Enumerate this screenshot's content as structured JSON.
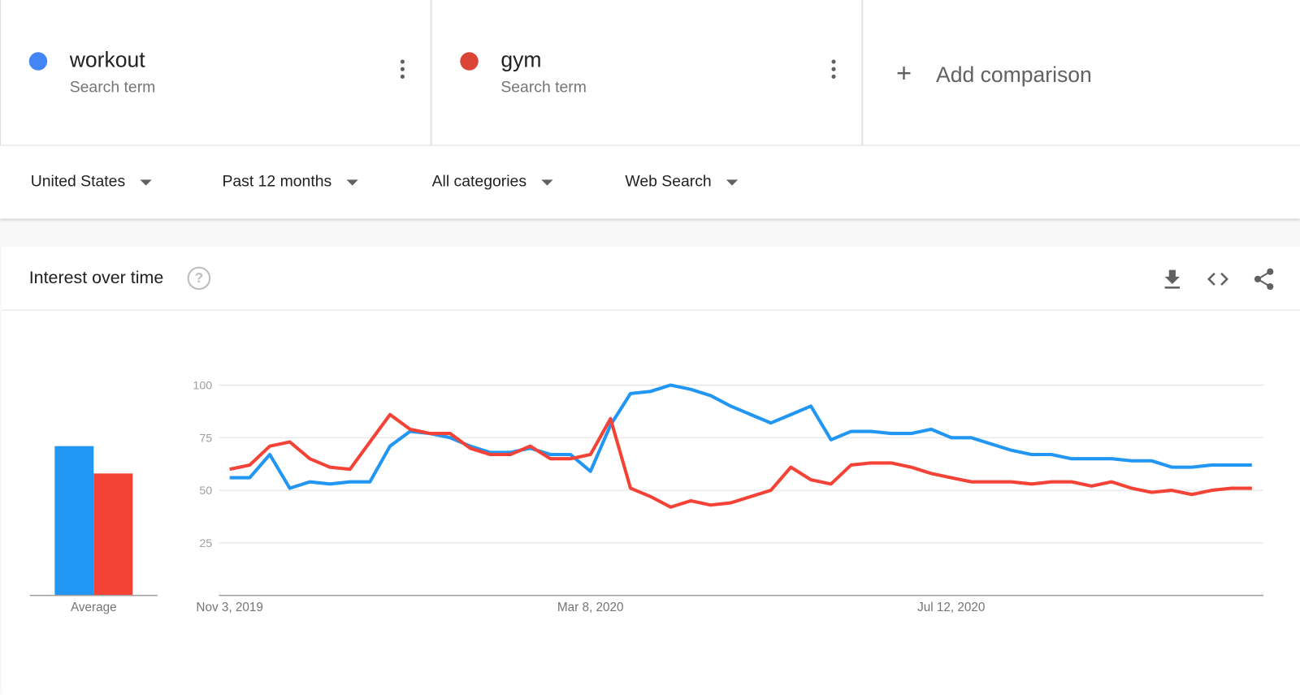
{
  "terms": [
    {
      "name": "workout",
      "subtitle": "Search term",
      "color": "#4285f4"
    },
    {
      "name": "gym",
      "subtitle": "Search term",
      "color": "#db4437"
    }
  ],
  "add_comparison": {
    "icon": "plus-icon",
    "label": "Add comparison"
  },
  "filters": [
    {
      "label": "United States"
    },
    {
      "label": "Past 12 months"
    },
    {
      "label": "All categories"
    },
    {
      "label": "Web Search"
    }
  ],
  "card": {
    "title": "Interest over time",
    "help_icon": "help-icon",
    "actions": [
      "download-icon",
      "embed-icon",
      "share-icon"
    ]
  },
  "chart_data": {
    "type": "line",
    "average_bars": {
      "label": "Average",
      "values": [
        71,
        58
      ],
      "colors": [
        "#2196f3",
        "#f44336"
      ]
    },
    "x_start": "2019-11-03",
    "x_interval": "week",
    "x_tick_labels": [
      "Nov 3, 2019",
      "Mar 8, 2020",
      "Jul 12, 2020"
    ],
    "y_ticks": [
      25,
      50,
      75,
      100
    ],
    "ylim": [
      0,
      100
    ],
    "grid": true,
    "series": [
      {
        "color": "#2196f3",
        "values": [
          56,
          56,
          67,
          51,
          54,
          53,
          54,
          54,
          71,
          78,
          77,
          75,
          71,
          68,
          68,
          70,
          67,
          67,
          59,
          81,
          96,
          97,
          100,
          98,
          95,
          90,
          86,
          82,
          86,
          90,
          74,
          78,
          78,
          77,
          77,
          79,
          75,
          75,
          72,
          69,
          67,
          67,
          65,
          65,
          65,
          64,
          64,
          61,
          61,
          62,
          62,
          62
        ]
      },
      {
        "color": "#f44336",
        "values": [
          60,
          62,
          71,
          73,
          65,
          61,
          60,
          73,
          86,
          79,
          77,
          77,
          70,
          67,
          67,
          71,
          65,
          65,
          67,
          84,
          51,
          47,
          42,
          45,
          43,
          44,
          47,
          50,
          61,
          55,
          53,
          62,
          63,
          63,
          61,
          58,
          56,
          54,
          54,
          54,
          53,
          54,
          54,
          52,
          54,
          51,
          49,
          50,
          48,
          50,
          51,
          51
        ]
      }
    ]
  }
}
